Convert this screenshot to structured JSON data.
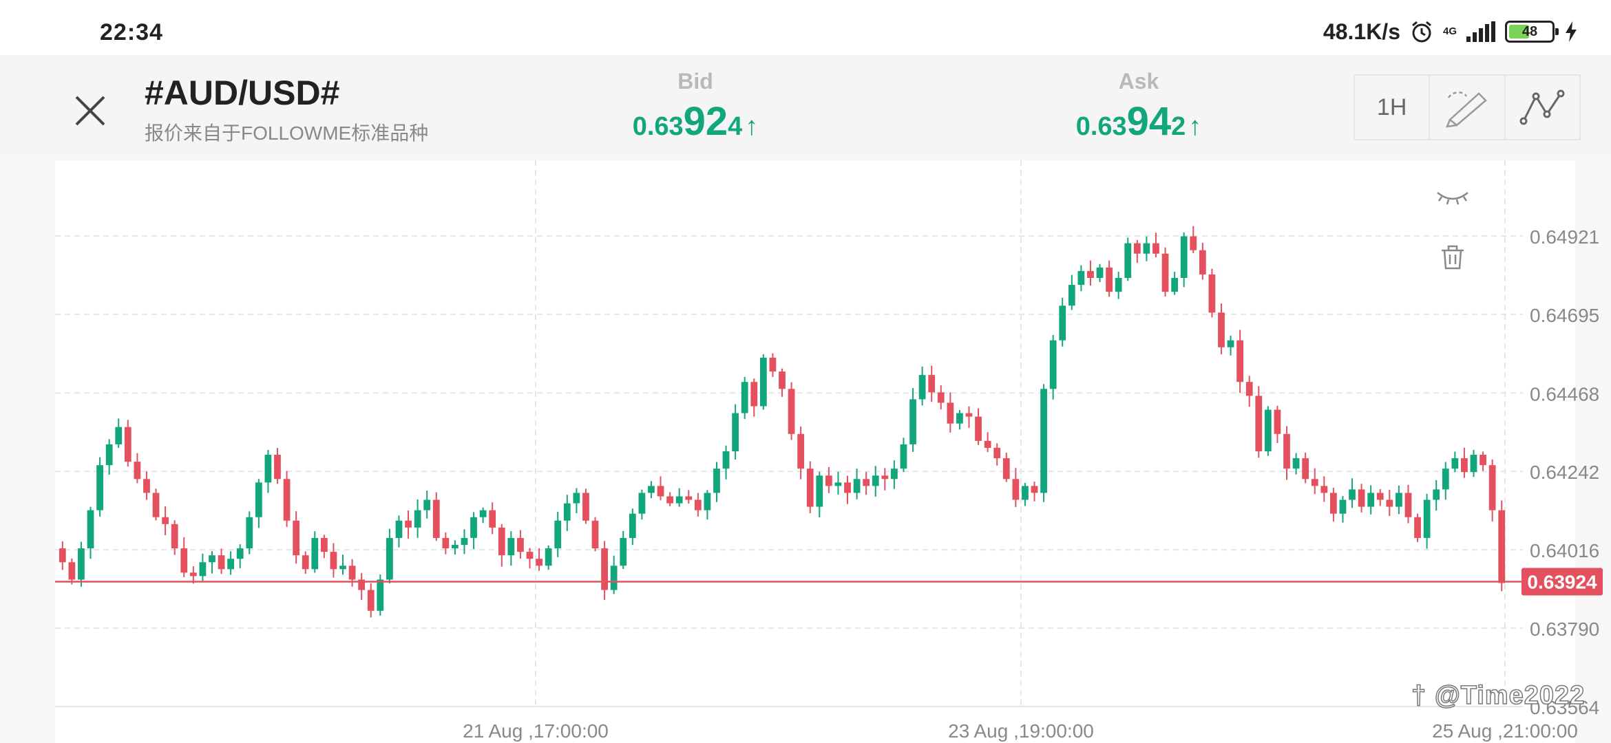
{
  "status_bar": {
    "time": "22:34",
    "net_speed": "48.1K/s",
    "network": "4G",
    "battery": "48",
    "icons": [
      "alarm-icon",
      "signal-icon",
      "battery-icon",
      "charging-icon"
    ]
  },
  "header": {
    "symbol": "#AUD/USD#",
    "source": "报价来自于FOLLOWME标准品种",
    "bid": {
      "label": "Bid",
      "prefix": "0.63",
      "big": "92",
      "suffix": "4",
      "arrow": "↑"
    },
    "ask": {
      "label": "Ask",
      "prefix": "0.63",
      "big": "94",
      "suffix": "2",
      "arrow": "↑"
    },
    "timeframe": "1H",
    "tools": [
      "timeframe-button",
      "draw-tool-icon",
      "indicator-icon"
    ]
  },
  "colors": {
    "up": "#11a67c",
    "down": "#e4505d",
    "accent_line": "#e4505d"
  },
  "chart_data": {
    "type": "candlestick",
    "y_ticks": [
      "0.64921",
      "0.64695",
      "0.64468",
      "0.64242",
      "0.64016",
      "0.63790",
      "0.63564"
    ],
    "y_tick_values": [
      0.64921,
      0.64695,
      0.64468,
      0.64242,
      0.64016,
      0.6379,
      0.63564
    ],
    "x_ticks": [
      "21 Aug ,17:00:00",
      "23 Aug ,19:00:00",
      "25 Aug ,21:00:00"
    ],
    "current_price": "0.63924",
    "current_value": 0.63924,
    "grid": true,
    "close_path": [
      0.6398,
      0.6393,
      0.6402,
      0.6413,
      0.6426,
      0.6432,
      0.6437,
      0.6427,
      0.6422,
      0.6418,
      0.6411,
      0.6409,
      0.6402,
      0.6395,
      0.6394,
      0.6398,
      0.64,
      0.6396,
      0.6399,
      0.6402,
      0.6411,
      0.6421,
      0.6429,
      0.6422,
      0.641,
      0.64,
      0.6396,
      0.6405,
      0.6401,
      0.6396,
      0.6397,
      0.6393,
      0.639,
      0.6384,
      0.6393,
      0.6405,
      0.641,
      0.6408,
      0.6413,
      0.6416,
      0.6405,
      0.6402,
      0.6403,
      0.6405,
      0.6411,
      0.6413,
      0.6408,
      0.64,
      0.6405,
      0.6401,
      0.6399,
      0.6397,
      0.6402,
      0.641,
      0.6415,
      0.6418,
      0.641,
      0.6402,
      0.639,
      0.6397,
      0.6405,
      0.6412,
      0.6418,
      0.642,
      0.6417,
      0.6415,
      0.6417,
      0.6416,
      0.6413,
      0.6418,
      0.6425,
      0.643,
      0.6441,
      0.645,
      0.6443,
      0.6457,
      0.6453,
      0.6448,
      0.6435,
      0.6425,
      0.6414,
      0.6423,
      0.642,
      0.6421,
      0.6418,
      0.6422,
      0.642,
      0.6423,
      0.6422,
      0.6425,
      0.6432,
      0.6445,
      0.6452,
      0.6447,
      0.6444,
      0.6438,
      0.6441,
      0.644,
      0.6433,
      0.6431,
      0.6428,
      0.6422,
      0.6416,
      0.642,
      0.6418,
      0.6448,
      0.6462,
      0.6472,
      0.6478,
      0.6482,
      0.648,
      0.6483,
      0.6476,
      0.648,
      0.649,
      0.6487,
      0.649,
      0.6487,
      0.6476,
      0.648,
      0.6492,
      0.6488,
      0.6481,
      0.647,
      0.646,
      0.6462,
      0.645,
      0.6446,
      0.643,
      0.6442,
      0.6435,
      0.6425,
      0.6428,
      0.6422,
      0.642,
      0.6418,
      0.6412,
      0.6416,
      0.6419,
      0.6414,
      0.6418,
      0.6416,
      0.6414,
      0.6418,
      0.6411,
      0.6405,
      0.6416,
      0.6419,
      0.6425,
      0.6428,
      0.6424,
      0.6429,
      0.6426,
      0.6413,
      0.6392
    ]
  },
  "annotation_tools": [
    "eye-hide-icon",
    "trash-icon"
  ],
  "watermark": "† @Time2022"
}
